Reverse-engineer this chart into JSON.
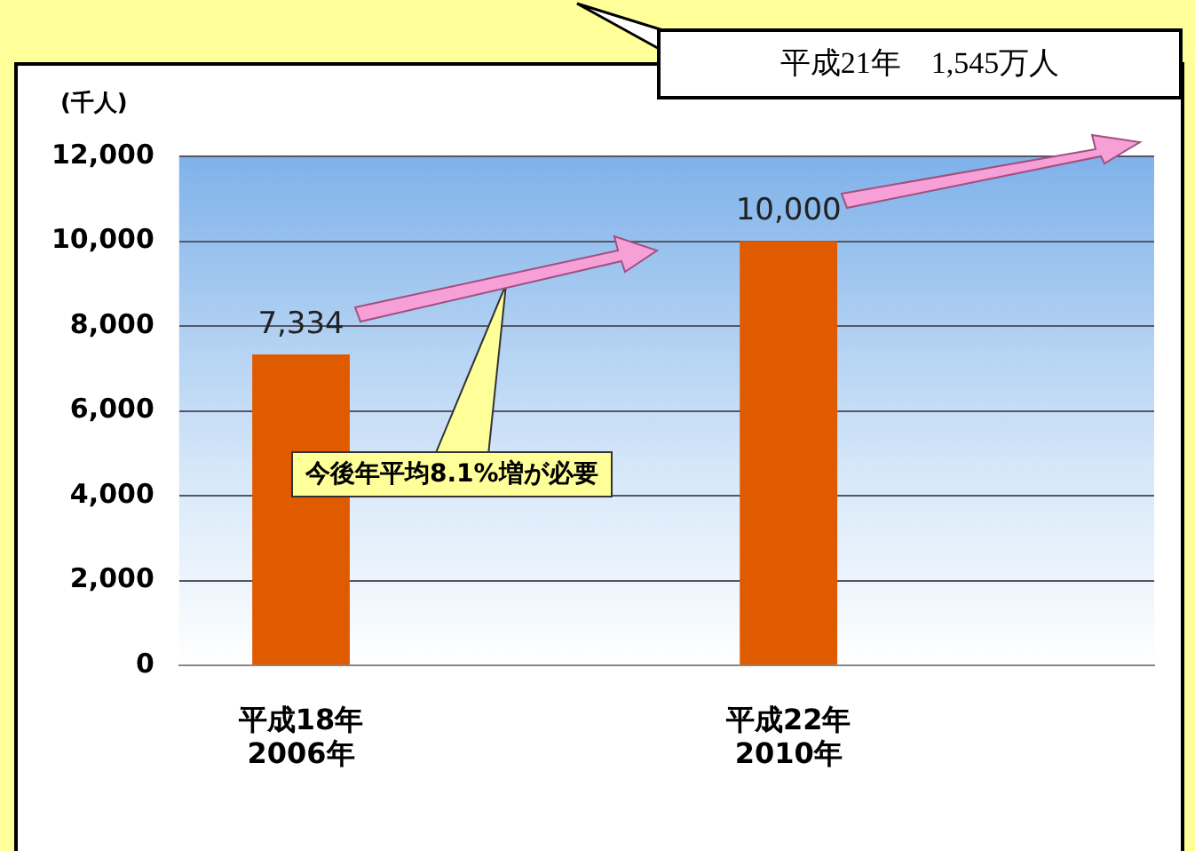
{
  "chart_data": {
    "type": "bar",
    "ylabel": "(千人)",
    "categories": [
      "平成18年\n2006年",
      null,
      "平成22年\n2010年",
      null
    ],
    "values": [
      7334,
      null,
      10000,
      null
    ],
    "color": "#e05a00",
    "ylim": [
      0,
      12000
    ],
    "yticks": [
      {
        "value": 0,
        "label": "0"
      },
      {
        "value": 2000,
        "label": "2,000"
      },
      {
        "value": 4000,
        "label": "4,000"
      },
      {
        "value": 6000,
        "label": "6,000"
      },
      {
        "value": 8000,
        "label": "8,000"
      },
      {
        "value": 10000,
        "label": "10,000"
      },
      {
        "value": 12000,
        "label": "12,000"
      }
    ],
    "grid": "y",
    "legend": false,
    "value_labels": [
      "7,334",
      null,
      "10,000",
      null
    ],
    "annotations": [
      "平成21年　1,545万人",
      "今後年平均8.1%増が必要"
    ]
  }
}
